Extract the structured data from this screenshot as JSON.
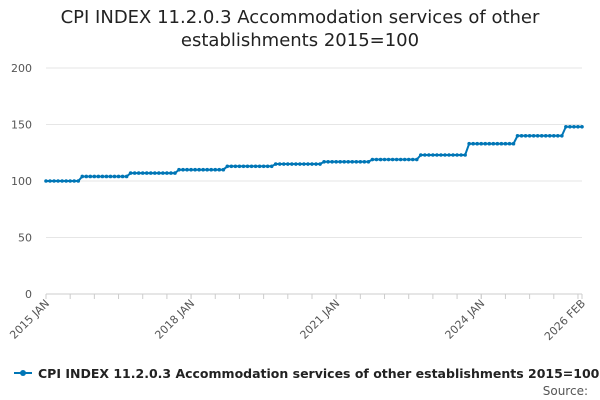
{
  "chart_data": {
    "type": "line",
    "title_lines": [
      "CPI INDEX 11.2.0.3 Accommodation services of other",
      "establishments 2015=100"
    ],
    "x_start": "2015 JAN",
    "x_end": "2026 FEB",
    "x_tick_labels": [
      "2015 JAN",
      "2018 JAN",
      "2021 JAN",
      "2024 JAN",
      "2026 FEB"
    ],
    "y_ticks": [
      0,
      50,
      100,
      150,
      200
    ],
    "ylim": [
      0,
      200
    ],
    "series": [
      {
        "name": "CPI INDEX 11.2.0.3 Accommodation services of other establishments 2015=100",
        "color": "#0076b6",
        "steps": [
          {
            "from": "2015 JAN",
            "to": "2015 SEP",
            "value": 100
          },
          {
            "from": "2015 OCT",
            "to": "2016 SEP",
            "value": 104
          },
          {
            "from": "2016 OCT",
            "to": "2017 SEP",
            "value": 107
          },
          {
            "from": "2017 OCT",
            "to": "2018 SEP",
            "value": 110
          },
          {
            "from": "2018 OCT",
            "to": "2019 SEP",
            "value": 113
          },
          {
            "from": "2019 OCT",
            "to": "2020 SEP",
            "value": 115
          },
          {
            "from": "2020 OCT",
            "to": "2021 SEP",
            "value": 117
          },
          {
            "from": "2021 OCT",
            "to": "2022 SEP",
            "value": 119
          },
          {
            "from": "2022 OCT",
            "to": "2023 SEP",
            "value": 123
          },
          {
            "from": "2023 OCT",
            "to": "2024 SEP",
            "value": 133
          },
          {
            "from": "2024 OCT",
            "to": "2025 SEP",
            "value": 140
          },
          {
            "from": "2025 OCT",
            "to": "2026 FEB",
            "value": 148
          }
        ]
      }
    ],
    "legend_label": "CPI INDEX 11.2.0.3 Accommodation services of other establishments 2015=100",
    "source_label": "Source:"
  }
}
